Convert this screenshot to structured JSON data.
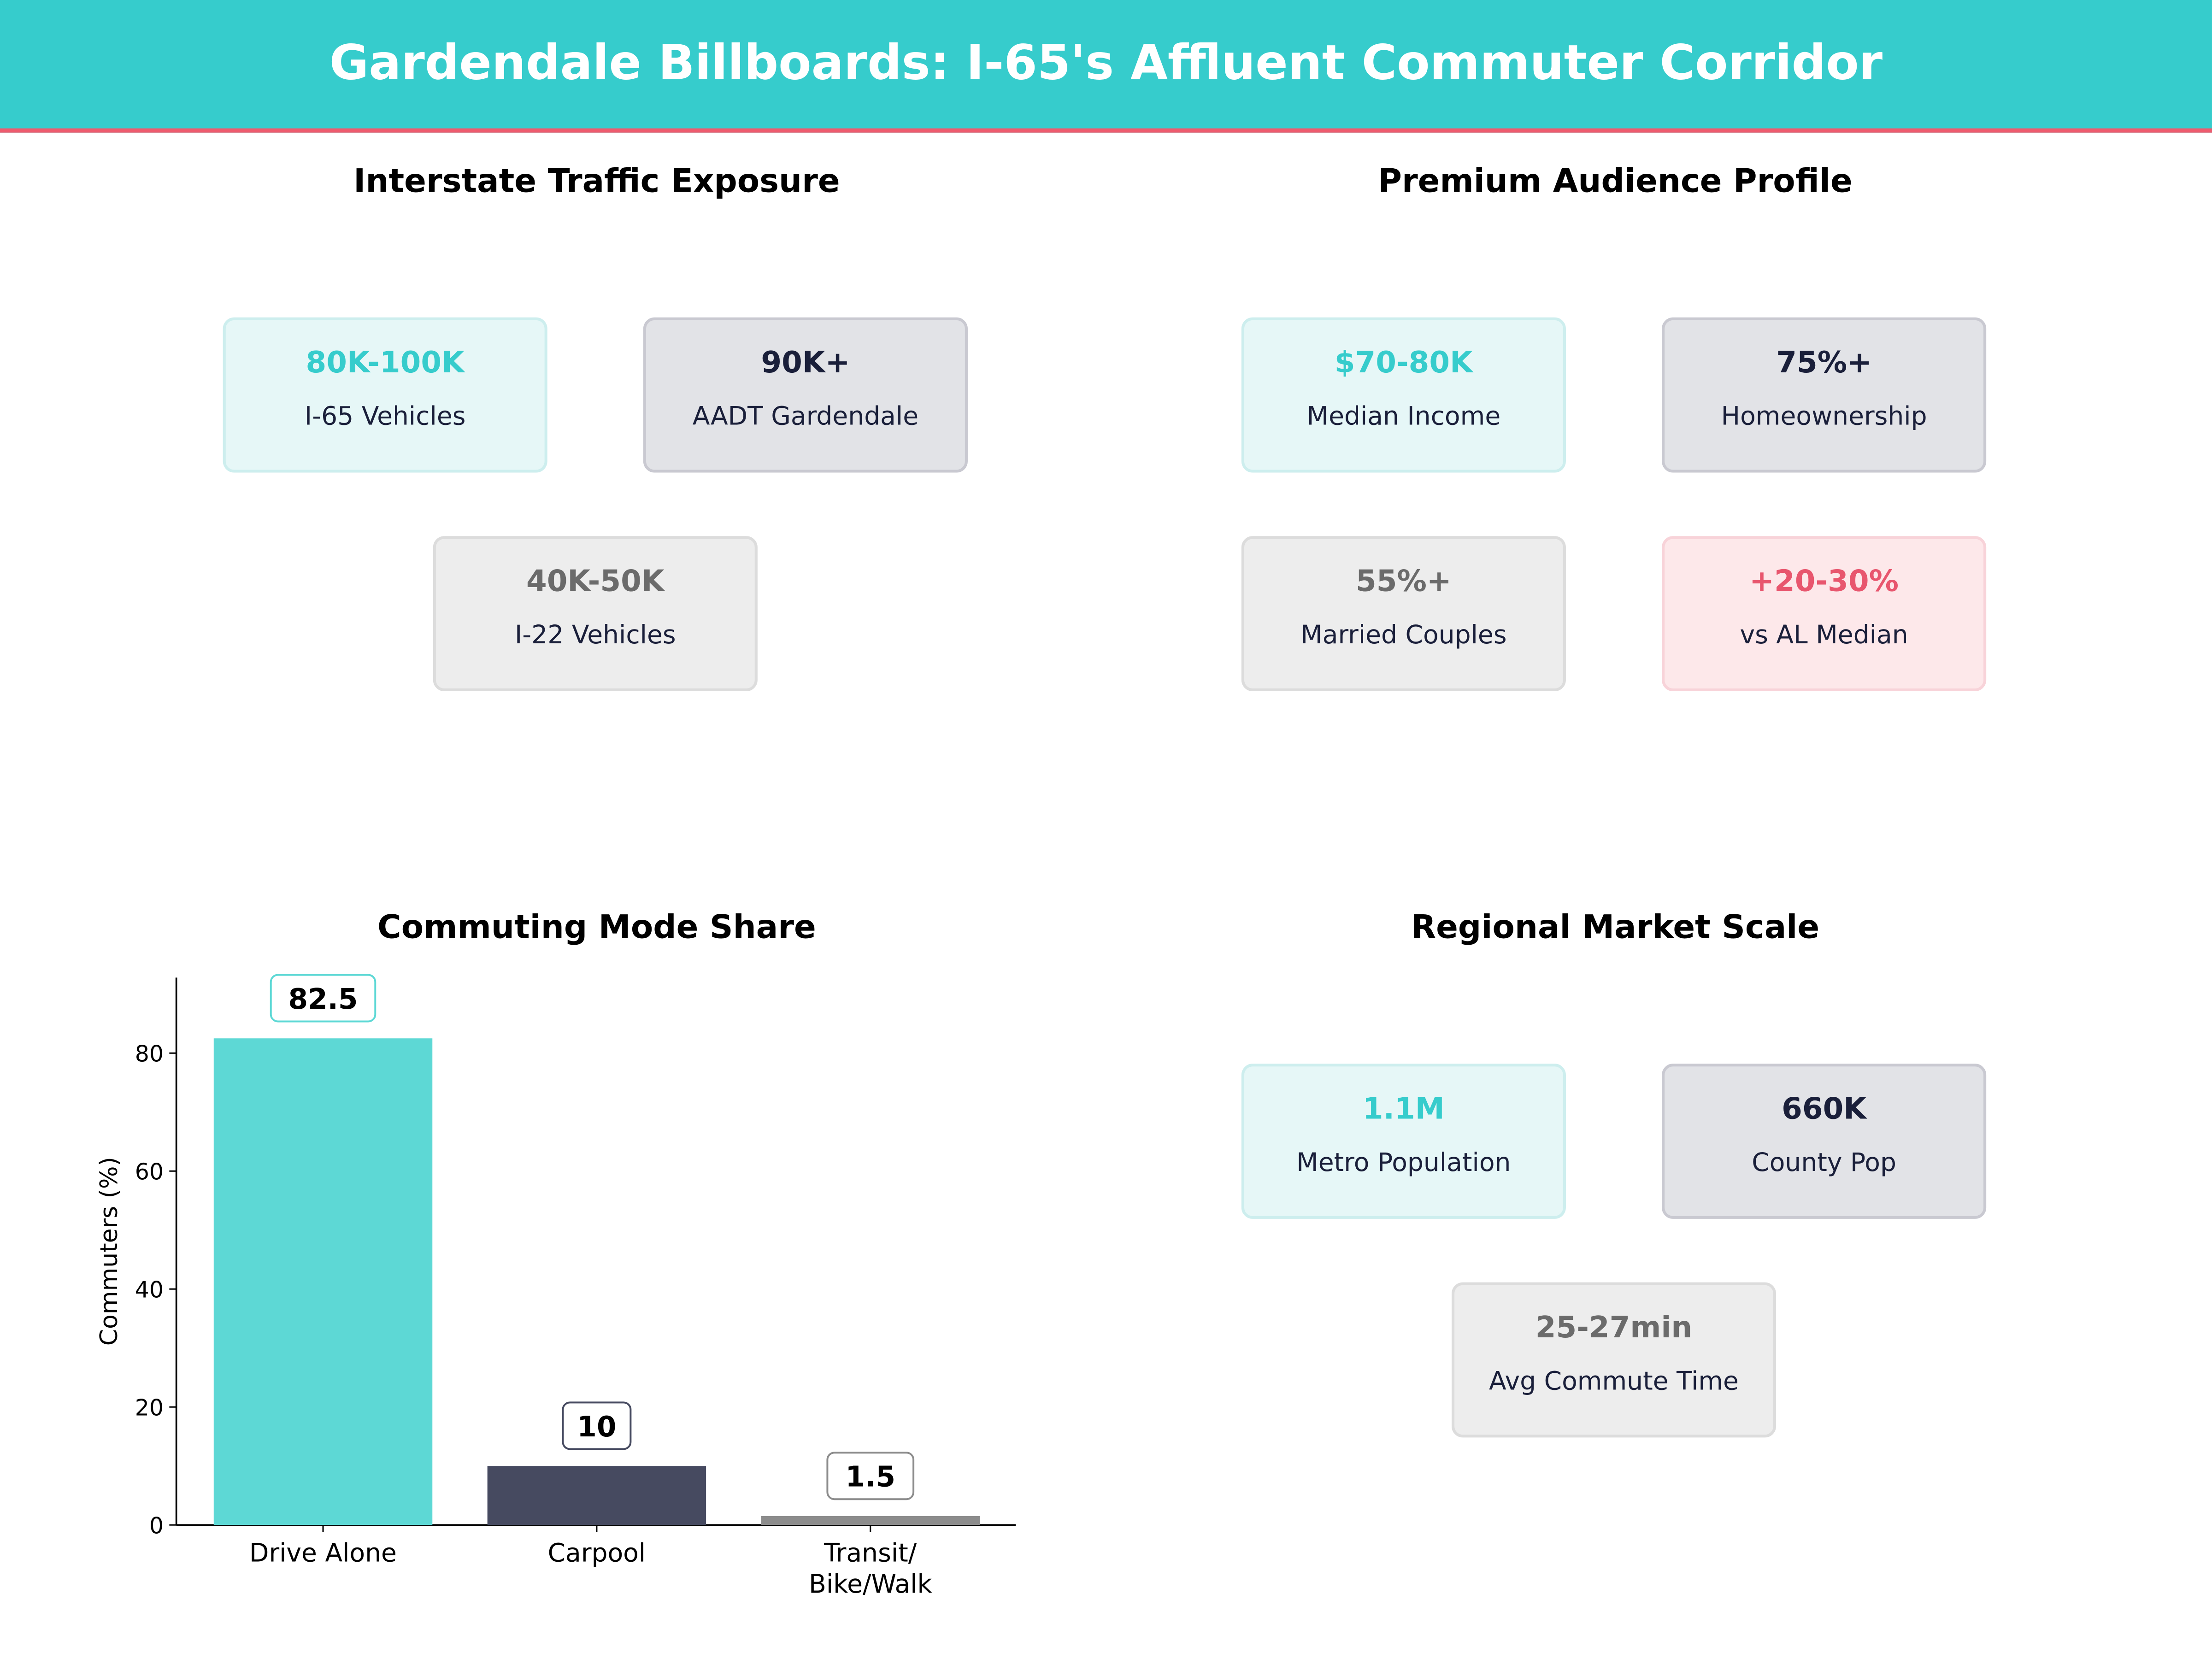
{
  "header": {
    "title": "Gardendale Billboards: I-65's Affluent Commuter Corridor"
  },
  "colors": {
    "header": "#36cccc",
    "accent_line": "#ee5b6e",
    "teal": "#36cccc",
    "navy": "#1a1f3a",
    "gray": "#6b6b6b",
    "pink": "#e8566e"
  },
  "panels": {
    "traffic": {
      "title": "Interstate Traffic Exposure",
      "cards": [
        {
          "value": "80K-100K",
          "label": "I-65  Vehicles",
          "style": "teal"
        },
        {
          "value": "90K+",
          "label": "AADT Gardendale",
          "style": "dark"
        },
        {
          "value": "40K-50K",
          "label": "I-22  Vehicles",
          "style": "gray"
        }
      ]
    },
    "audience": {
      "title": "Premium Audience Profile",
      "cards": [
        {
          "value": "$70-80K",
          "label": "Median Income",
          "style": "teal"
        },
        {
          "value": "75%+",
          "label": "Homeownership",
          "style": "dark"
        },
        {
          "value": "55%+",
          "label": "Married Couples",
          "style": "gray"
        },
        {
          "value": "+20-30%",
          "label": "vs AL Median",
          "style": "pink"
        }
      ]
    },
    "market": {
      "title": "Regional Market Scale",
      "cards": [
        {
          "value": "1.1M",
          "label": "Metro Population",
          "style": "teal"
        },
        {
          "value": "660K",
          "label": "County Pop",
          "style": "dark"
        },
        {
          "value": "25-27min",
          "label": "Avg Commute Time",
          "style": "gray"
        }
      ]
    }
  },
  "chart_data": {
    "type": "bar",
    "title": "Commuting Mode Share",
    "xlabel": "",
    "ylabel": "Commuters (%)",
    "categories": [
      "Drive Alone",
      "Carpool",
      "Transit/\nBike/Walk"
    ],
    "values": [
      82.5,
      10,
      1.5
    ],
    "data_labels": [
      "82.5",
      "10",
      "1.5"
    ],
    "bar_colors": [
      "#5dd8d5",
      "#464a60",
      "#8c8c8c"
    ],
    "label_border_colors": [
      "#5dd8d5",
      "#464a60",
      "#8c8c8c"
    ],
    "ylim": [
      0,
      92.8
    ],
    "yticks": [
      0,
      20,
      40,
      60,
      80
    ],
    "grid": false
  }
}
